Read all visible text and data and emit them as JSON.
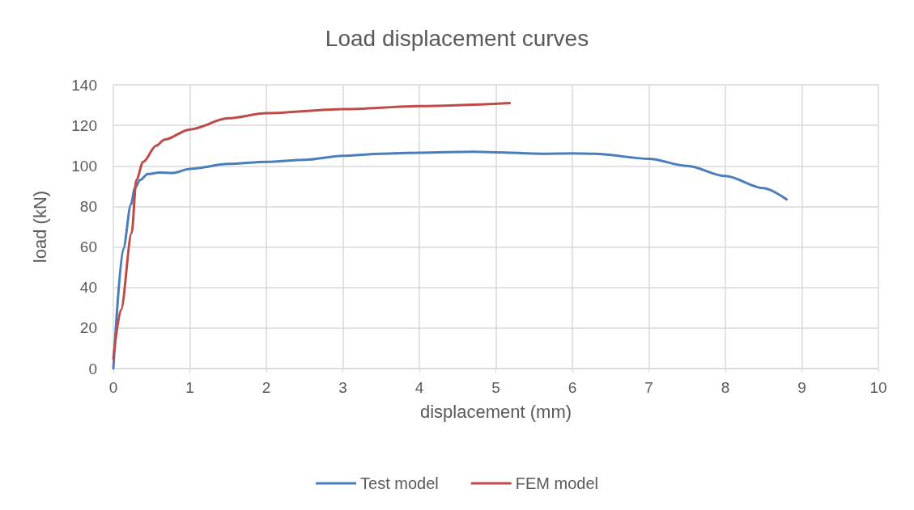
{
  "chart_data": {
    "type": "line",
    "title": "Load displacement curves",
    "xlabel": "displacement (mm)",
    "ylabel": "load (kN)",
    "xlim": [
      0,
      10
    ],
    "xticks": [
      0,
      1,
      2,
      3,
      4,
      5,
      6,
      7,
      8,
      9,
      10
    ],
    "ylim": [
      0,
      140
    ],
    "yticks": [
      0,
      20,
      40,
      60,
      80,
      100,
      120,
      140
    ],
    "grid": true,
    "legend": "bottom",
    "marker": "none",
    "line_style": "solid",
    "series": [
      {
        "name": "Test model",
        "color": "#4a7ebb",
        "x": [
          0,
          0.13,
          0.23,
          0.28,
          0.35,
          0.45,
          0.6,
          0.77,
          1,
          1.5,
          2,
          2.5,
          3,
          3.5,
          4,
          4.7,
          5,
          5.6,
          6,
          6.3,
          7,
          7.5,
          8,
          8.5,
          8.8
        ],
        "values": [
          0,
          59,
          81,
          89,
          93,
          96,
          96.7,
          96.5,
          98.5,
          101,
          102,
          103,
          105,
          106,
          106.5,
          107,
          106.7,
          106,
          106.2,
          106,
          103.5,
          100,
          95,
          89,
          83.5
        ]
      },
      {
        "name": "FEM model",
        "color": "#be4b48",
        "x": [
          0,
          0.1,
          0.24,
          0.3,
          0.39,
          0.56,
          0.67,
          1,
          1.5,
          2,
          3,
          4,
          5.18
        ],
        "values": [
          5,
          29,
          67,
          93,
          102,
          110,
          113,
          118,
          123.5,
          126,
          128,
          129.5,
          131
        ]
      }
    ]
  }
}
